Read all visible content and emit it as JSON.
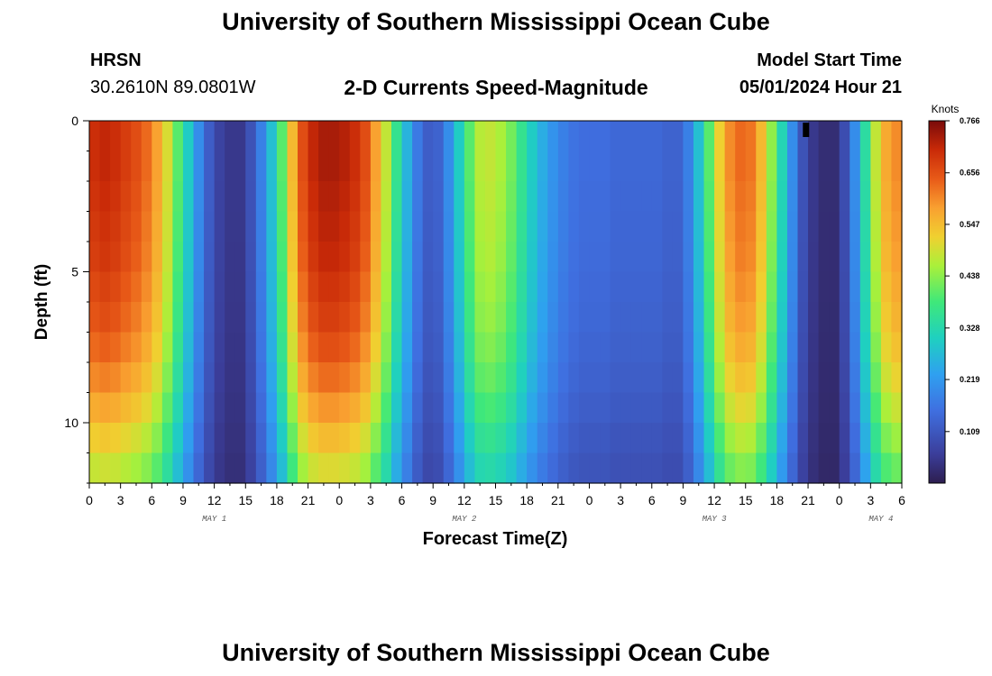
{
  "header": {
    "title": "University of Southern Mississippi Ocean Cube",
    "station_name": "HRSN",
    "station_coords": "30.2610N  89.0801W",
    "subtitle": "2-D Currents Speed-Magnitude",
    "model_label": "Model Start Time",
    "model_time": "05/01/2024 Hour 21"
  },
  "footer": {
    "title": "University of Southern Mississippi Ocean Cube"
  },
  "chart_data": {
    "type": "heatmap",
    "title": "2-D Currents Speed-Magnitude",
    "xlabel": "Forecast Time(Z)",
    "ylabel": "Depth (ft)",
    "colorbar_label": "Knots",
    "x_start_hour": 0,
    "x_hours": 78,
    "x_tick_labels": [
      "0",
      "3",
      "6",
      "9",
      "12",
      "15",
      "18",
      "21",
      "0",
      "3",
      "6",
      "9",
      "12",
      "15",
      "18",
      "21",
      "0",
      "3",
      "6",
      "9",
      "12",
      "15",
      "18",
      "21",
      "0",
      "3",
      "6"
    ],
    "day_labels": [
      {
        "label": "MAY 1",
        "hour": 12
      },
      {
        "label": "MAY 2",
        "hour": 36
      },
      {
        "label": "MAY 3",
        "hour": 60
      },
      {
        "label": "MAY 4",
        "hour": 76
      }
    ],
    "y_ticks": [
      0,
      5,
      10
    ],
    "ylim": [
      0,
      12
    ],
    "y_inverted": true,
    "colorbar_ticks": [
      "0.766",
      "0.656",
      "0.547",
      "0.438",
      "0.328",
      "0.219",
      "0.109"
    ],
    "zlim": [
      0,
      0.766
    ],
    "surface_speed_by_hour": [
      0.7,
      0.71,
      0.7,
      0.68,
      0.66,
      0.63,
      0.58,
      0.5,
      0.4,
      0.3,
      0.2,
      0.12,
      0.07,
      0.05,
      0.05,
      0.1,
      0.18,
      0.28,
      0.4,
      0.55,
      0.66,
      0.71,
      0.73,
      0.73,
      0.72,
      0.7,
      0.66,
      0.58,
      0.48,
      0.36,
      0.26,
      0.17,
      0.12,
      0.13,
      0.2,
      0.3,
      0.4,
      0.47,
      0.48,
      0.46,
      0.42,
      0.36,
      0.3,
      0.25,
      0.21,
      0.18,
      0.16,
      0.15,
      0.15,
      0.15,
      0.14,
      0.14,
      0.14,
      0.14,
      0.14,
      0.13,
      0.13,
      0.18,
      0.28,
      0.4,
      0.52,
      0.6,
      0.63,
      0.62,
      0.55,
      0.44,
      0.32,
      0.2,
      0.1,
      0.05,
      0.03,
      0.03,
      0.09,
      0.2,
      0.34,
      0.48,
      0.57,
      0.6
    ],
    "depth_factors": [
      1.0,
      1.0,
      0.99,
      0.98,
      0.97,
      0.95,
      0.93,
      0.9,
      0.86,
      0.81,
      0.75,
      0.69
    ],
    "peak_marker": {
      "hour": 68,
      "depth_ft": 0.4
    }
  }
}
